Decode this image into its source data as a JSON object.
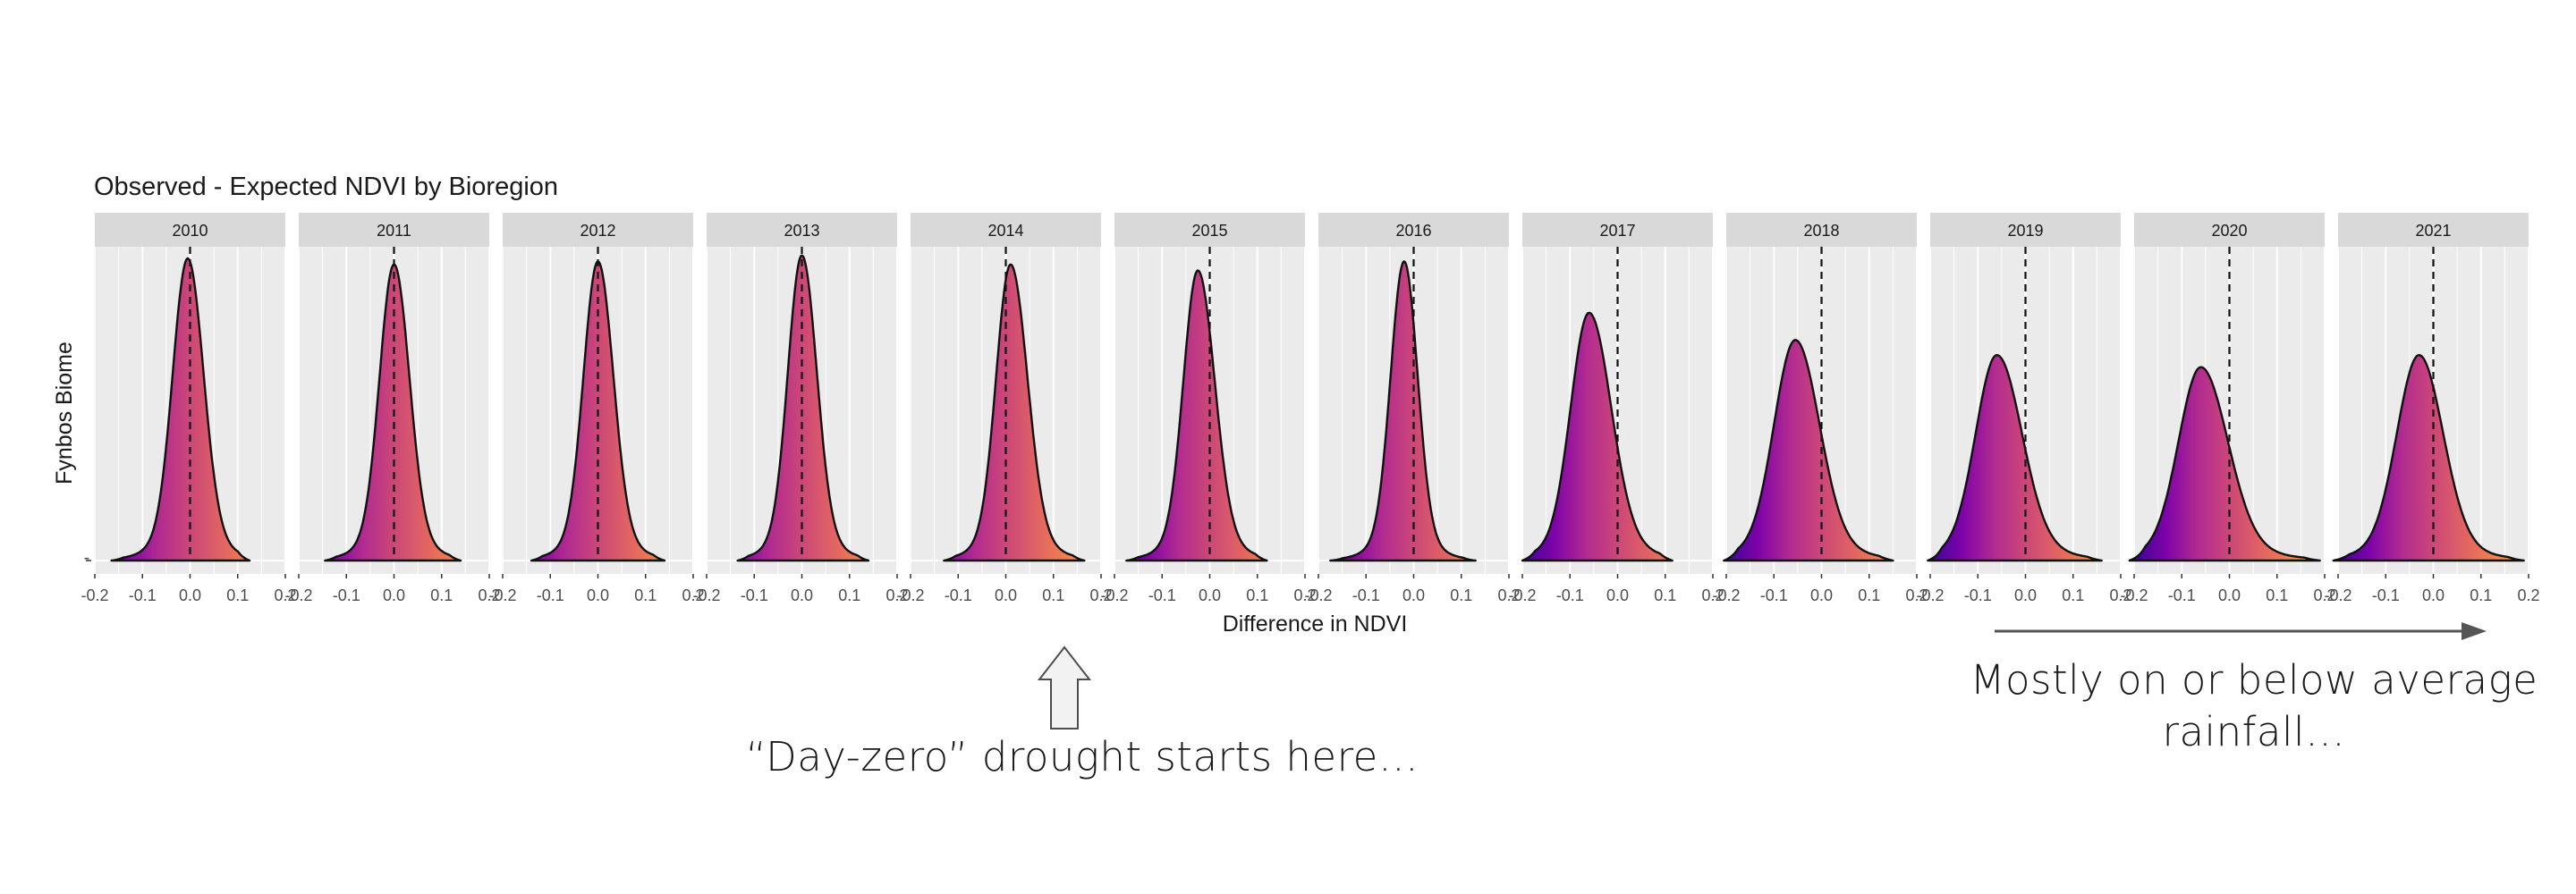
{
  "chart_data": {
    "type": "density_facets",
    "title": "Observed - Expected NDVI by Bioregion",
    "xlabel": "Difference in NDVI",
    "ylabel": "Fynbos Biome",
    "y_tick_label": "-",
    "xlim": [
      -0.2,
      0.2
    ],
    "x_ticks": [
      "-0.2",
      "-0.1",
      "0.0",
      "0.1",
      "0.2"
    ],
    "reference_line_x": 0.0,
    "gradient_colors": [
      "#3a049a",
      "#7e03a8",
      "#b12a90",
      "#cc4778",
      "#e16462",
      "#f2844b",
      "#fca636"
    ],
    "facets": [
      {
        "year": "2010",
        "peak": -0.005,
        "height": 1.0,
        "sd_left": 0.031,
        "sd_right": 0.033,
        "min": -0.165,
        "max": 0.125
      },
      {
        "year": "2011",
        "peak": 0.0,
        "height": 0.98,
        "sd_left": 0.03,
        "sd_right": 0.032,
        "min": -0.145,
        "max": 0.14
      },
      {
        "year": "2012",
        "peak": 0.0,
        "height": 0.99,
        "sd_left": 0.03,
        "sd_right": 0.032,
        "min": -0.14,
        "max": 0.14
      },
      {
        "year": "2013",
        "peak": 0.0,
        "height": 1.01,
        "sd_left": 0.029,
        "sd_right": 0.031,
        "min": -0.135,
        "max": 0.14
      },
      {
        "year": "2014",
        "peak": 0.01,
        "height": 0.98,
        "sd_left": 0.03,
        "sd_right": 0.035,
        "min": -0.13,
        "max": 0.165
      },
      {
        "year": "2015",
        "peak": -0.025,
        "height": 0.96,
        "sd_left": 0.03,
        "sd_right": 0.035,
        "min": -0.175,
        "max": 0.12
      },
      {
        "year": "2016",
        "peak": -0.02,
        "height": 0.99,
        "sd_left": 0.028,
        "sd_right": 0.028,
        "min": -0.175,
        "max": 0.13
      },
      {
        "year": "2017",
        "peak": -0.06,
        "height": 0.82,
        "sd_left": 0.038,
        "sd_right": 0.046,
        "min": -0.2,
        "max": 0.115
      },
      {
        "year": "2018",
        "peak": -0.055,
        "height": 0.73,
        "sd_left": 0.044,
        "sd_right": 0.05,
        "min": -0.205,
        "max": 0.15
      },
      {
        "year": "2019",
        "peak": -0.06,
        "height": 0.68,
        "sd_left": 0.044,
        "sd_right": 0.052,
        "min": -0.205,
        "max": 0.16
      },
      {
        "year": "2020",
        "peak": -0.06,
        "height": 0.64,
        "sd_left": 0.046,
        "sd_right": 0.056,
        "min": -0.21,
        "max": 0.19
      },
      {
        "year": "2021",
        "peak": -0.03,
        "height": 0.68,
        "sd_left": 0.046,
        "sd_right": 0.05,
        "min": -0.21,
        "max": 0.19
      }
    ]
  },
  "annotations": {
    "drought": "“Day-zero” drought starts here…",
    "rainfall": "Mostly on or below average rainfall…"
  }
}
